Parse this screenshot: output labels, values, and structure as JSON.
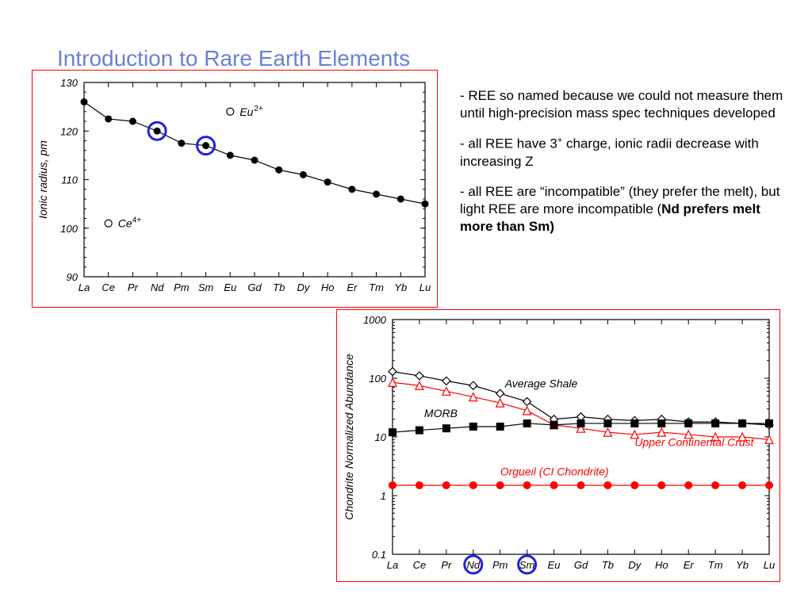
{
  "title": "Introduction to Rare Earth Elements",
  "bullets": {
    "b1": "- REE so named because we could not measure them until high-precision mass spec techniques developed",
    "b2a": "- all REE have 3",
    "b2sup": "+",
    "b2b": " charge, ionic radii decrease with increasing Z",
    "b3a": "- all REE are “incompatible” (they prefer the melt), but light REE are more incompatible (",
    "b3bold": "Nd prefers melt more than Sm)"
  },
  "chart1": {
    "type": "scatter-line",
    "ylabel": "Ionic radius, pm",
    "ylim": [
      90,
      130
    ],
    "yticks": [
      90,
      100,
      110,
      120,
      130
    ],
    "xcats": [
      "La",
      "Ce",
      "Pr",
      "Nd",
      "Pm",
      "Sm",
      "Eu",
      "Gd",
      "Tb",
      "Dy",
      "Ho",
      "Er",
      "Tm",
      "Yb",
      "Lu"
    ],
    "series_main": {
      "values": [
        126,
        122.5,
        122,
        120,
        117.5,
        117,
        115,
        114,
        112,
        111,
        109.5,
        108,
        107,
        106,
        105
      ],
      "color": "#000000",
      "marker_fill": "#000000",
      "marker_r": 4.5
    },
    "open_points": [
      {
        "x_idx": 1,
        "y": 101,
        "label": "Ce4+"
      },
      {
        "x_idx": 6,
        "y": 124,
        "label": "Eu2+"
      }
    ],
    "circle_highlights": [
      {
        "x_idx": 3,
        "color": "#2020e0",
        "r": 11
      },
      {
        "x_idx": 5,
        "color": "#2020e0",
        "r": 11
      }
    ],
    "axis_color": "#000000",
    "tick_font_italic": true,
    "tick_fontsize": 13
  },
  "chart2": {
    "type": "line-log",
    "ylabel": "Chondrite Normalized Abundance",
    "ylim": [
      0.1,
      1000
    ],
    "yticks": [
      0.1,
      1,
      10,
      100,
      1000
    ],
    "ytick_labels": [
      "0.1",
      "1",
      "10",
      "100",
      "1000"
    ],
    "xcats": [
      "La",
      "Ce",
      "Pr",
      "Nd",
      "Pm",
      "Sm",
      "Eu",
      "Gd",
      "Tb",
      "Dy",
      "Ho",
      "Er",
      "Tm",
      "Yb",
      "Lu"
    ],
    "series": {
      "shale": {
        "label": "Average Shale",
        "color": "#000000",
        "marker": "diamond-open",
        "values": [
          130,
          110,
          90,
          75,
          55,
          40,
          20,
          22,
          20,
          19,
          20,
          18,
          18,
          17,
          16
        ]
      },
      "ucc": {
        "label": "Upper Continental Crust",
        "color": "#ff0000",
        "marker": "triangle-open",
        "values": [
          85,
          75,
          60,
          48,
          38,
          28,
          16,
          14,
          12,
          11,
          12,
          11,
          10,
          10,
          9
        ]
      },
      "morb": {
        "label": "MORB",
        "color": "#000000",
        "marker": "square-filled",
        "values": [
          12,
          13,
          14,
          15,
          15,
          17,
          16,
          17,
          17,
          17,
          17,
          17,
          17,
          17,
          17
        ]
      },
      "orgueil": {
        "label": "Orgueil (CI Chondrite)",
        "color": "#ff0000",
        "marker": "circle-filled",
        "values": [
          1.5,
          1.5,
          1.5,
          1.5,
          1.5,
          1.5,
          1.5,
          1.5,
          1.5,
          1.5,
          1.5,
          1.5,
          1.5,
          1.5,
          1.5
        ]
      }
    },
    "circle_highlights": [
      {
        "x_idx": 3,
        "color": "#2020e0",
        "r": 11,
        "at": "xlabel"
      },
      {
        "x_idx": 5,
        "color": "#2020e0",
        "r": 11,
        "at": "xlabel"
      }
    ],
    "axis_color": "#000000",
    "tick_font_italic": true,
    "tick_fontsize": 13
  }
}
